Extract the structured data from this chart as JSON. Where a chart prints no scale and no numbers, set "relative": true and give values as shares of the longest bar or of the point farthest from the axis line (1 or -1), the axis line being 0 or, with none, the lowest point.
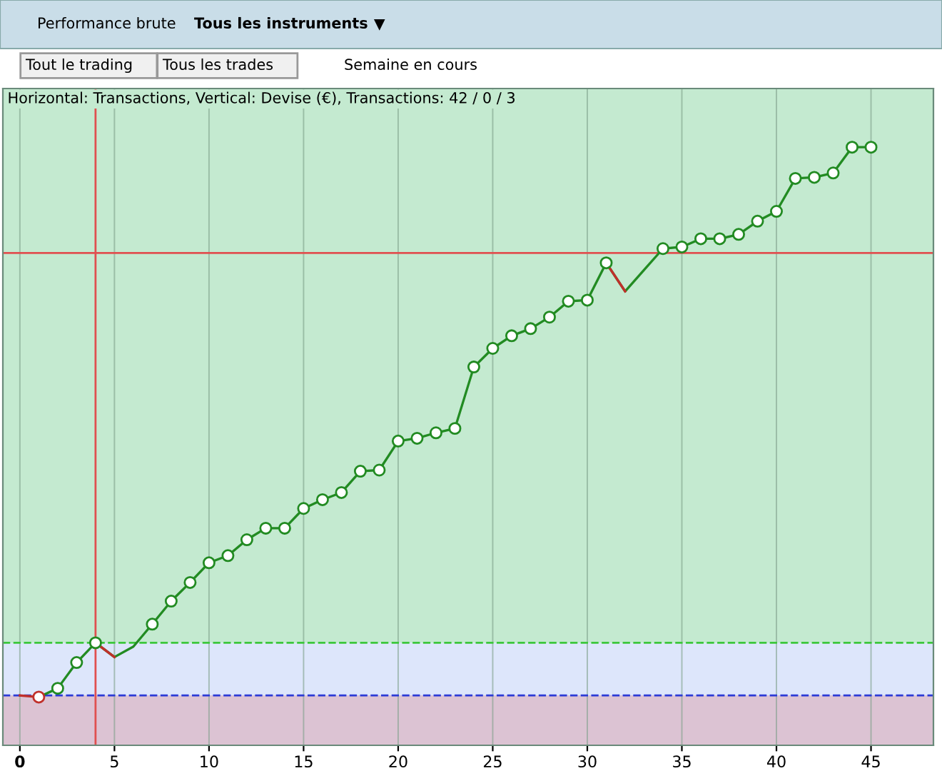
{
  "chart_data": {
    "type": "line",
    "relative": true,
    "title": "Performance brute",
    "subtitle": "Tous les instruments",
    "annotations": [
      "Tout le trading",
      "Tous les trades",
      "Semaine en cours",
      "Horizontal: Transactions, Vertical: Devise (€), Transactions: 42 / 0 / 3"
    ],
    "x": [
      0,
      1,
      2,
      3,
      4,
      5,
      6,
      7,
      8,
      9,
      10,
      11,
      12,
      13,
      14,
      15,
      16,
      17,
      18,
      19,
      20,
      21,
      22,
      23,
      24,
      25,
      26,
      27,
      28,
      29,
      30,
      31,
      32,
      33,
      34,
      35,
      36,
      37,
      38,
      39,
      40,
      41,
      42,
      43,
      44,
      45
    ],
    "series": [
      {
        "color": "#228b22",
        "values": [
          null,
          -0.003,
          0.013,
          0.06,
          0.096,
          0.07,
          0.089,
          0.13,
          0.172,
          0.206,
          0.242,
          0.255,
          0.284,
          0.305,
          0.305,
          0.341,
          0.357,
          0.37,
          0.409,
          0.411,
          0.464,
          0.469,
          0.479,
          0.487,
          0.599,
          0.633,
          0.656,
          0.669,
          0.69,
          0.719,
          0.721,
          0.789,
          0.737,
          0.776,
          0.815,
          0.818,
          0.833,
          0.833,
          0.841,
          0.865,
          0.883,
          0.943,
          0.945,
          0.953,
          1,
          1
        ]
      },
      {
        "type": "line",
        "color": "#c0302b",
        "values": [
          0,
          -0.003,
          null,
          null,
          0.096,
          0.07,
          null,
          null,
          null,
          null,
          null,
          null,
          null,
          null,
          null,
          null,
          null,
          null,
          null,
          null,
          null,
          null,
          null,
          null,
          null,
          null,
          null,
          null,
          null,
          null,
          null,
          0.789,
          0.737,
          null,
          null,
          null,
          null,
          null,
          null,
          null,
          null,
          null,
          null,
          null,
          null,
          null
        ]
      },
      {
        "type": "scatter",
        "marker": "circle",
        "colors": [
          "#228b22",
          "#c0302b",
          "#228b22",
          "#228b22",
          "#228b22",
          "#228b22",
          "#228b22",
          "#228b22",
          "#228b22",
          "#228b22",
          "#228b22",
          "#228b22",
          "#228b22",
          "#228b22",
          "#228b22",
          "#228b22",
          "#228b22",
          "#228b22",
          "#228b22",
          "#228b22",
          "#228b22",
          "#228b22",
          "#228b22",
          "#228b22",
          "#228b22",
          "#228b22",
          "#228b22",
          "#228b22",
          "#228b22",
          "#228b22",
          "#228b22",
          "#228b22",
          "#228b22",
          "#228b22",
          "#228b22",
          "#228b22",
          "#228b22",
          "#228b22",
          "#228b22",
          "#228b22",
          "#228b22",
          "#228b22",
          "#228b22",
          "#228b22",
          "#228b22",
          "#228b22"
        ],
        "values": [
          null,
          -0.003,
          0.013,
          0.06,
          0.096,
          null,
          null,
          0.13,
          0.172,
          0.206,
          0.242,
          0.255,
          0.284,
          0.305,
          0.305,
          0.341,
          0.357,
          0.37,
          0.409,
          0.411,
          0.464,
          0.469,
          0.479,
          0.487,
          0.599,
          0.633,
          0.656,
          0.669,
          0.69,
          0.719,
          0.721,
          0.789,
          null,
          null,
          0.815,
          0.818,
          0.833,
          0.833,
          0.841,
          0.865,
          0.883,
          0.943,
          0.945,
          0.953,
          1,
          1
        ]
      }
    ],
    "xlim": [
      -0.9,
      48.3
    ],
    "xticks": [
      0,
      5,
      10,
      15,
      20,
      25,
      30,
      35,
      40,
      45
    ],
    "ref_lines": [
      {
        "axis": "y",
        "value": 0,
        "color": "#2b3bd6",
        "line_style": "dashed"
      },
      {
        "axis": "y",
        "value": 0.096,
        "color": "#3cc83c",
        "line_style": "dashed"
      },
      {
        "axis": "x",
        "value": 4,
        "color": "#e05050",
        "line_style": "solid"
      },
      {
        "axis": "y",
        "value": 0.807,
        "color": "#e05050",
        "line_style": "solid"
      }
    ],
    "bands": [
      {
        "axis": "y",
        "from": -0.091,
        "to": 0,
        "color": "#dcc3d3"
      },
      {
        "axis": "y",
        "from": 0,
        "to": 0.096,
        "color": "#dde6fb"
      }
    ],
    "grid": "x"
  }
}
